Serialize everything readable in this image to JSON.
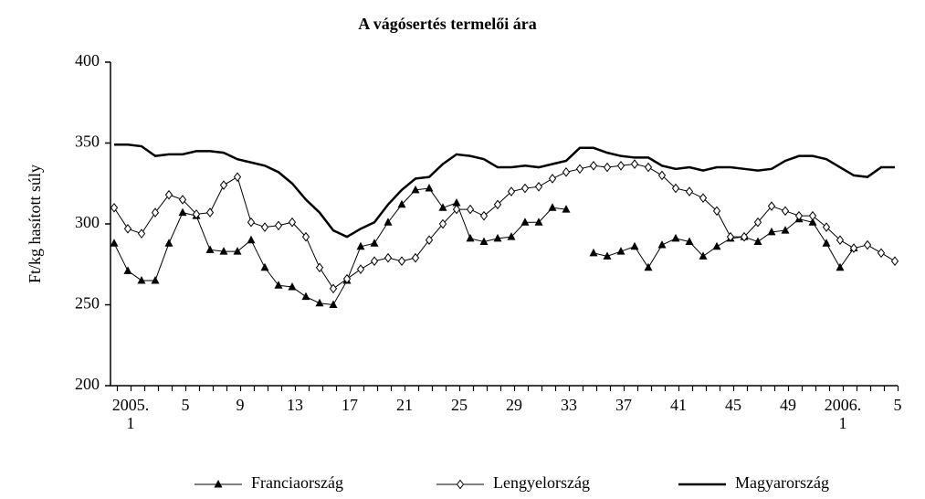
{
  "chart_data": {
    "type": "line",
    "title": "A vágósertés termelői ára",
    "y_label": "Ft/kg hasított súly",
    "categories": [
      "2005.\n1",
      null,
      null,
      null,
      "5",
      null,
      null,
      null,
      "9",
      null,
      null,
      null,
      "13",
      null,
      null,
      null,
      "17",
      null,
      null,
      null,
      "21",
      null,
      null,
      null,
      "25",
      null,
      null,
      null,
      "29",
      null,
      null,
      null,
      "33",
      null,
      null,
      null,
      "37",
      null,
      null,
      null,
      "41",
      null,
      null,
      null,
      "45",
      null,
      null,
      null,
      "49",
      null,
      null,
      null,
      "2006.\n1",
      null,
      null,
      null,
      "5",
      null
    ],
    "ylim": [
      200,
      400
    ],
    "yticks": [
      200,
      250,
      300,
      350,
      400
    ],
    "series": [
      {
        "name": "Franciaország",
        "color": "#000000",
        "marker": "triangle",
        "values": [
          288,
          271,
          265,
          265,
          288,
          307,
          305,
          284,
          283,
          283,
          290,
          273,
          262,
          261,
          255,
          251,
          250,
          265,
          286,
          288,
          301,
          312,
          321,
          322,
          310,
          313,
          291,
          289,
          291,
          292,
          301,
          301,
          310,
          309,
          null,
          282,
          280,
          283,
          286,
          273,
          287,
          291,
          289,
          280,
          286,
          291,
          292,
          289,
          295,
          296,
          303,
          301,
          288,
          273,
          285,
          null,
          null,
          null
        ]
      },
      {
        "name": "Lengyelország",
        "color": "#000000",
        "marker": "diamond",
        "values": [
          310,
          297,
          294,
          307,
          318,
          315,
          306,
          307,
          324,
          329,
          301,
          298,
          299,
          301,
          292,
          273,
          260,
          266,
          272,
          277,
          279,
          277,
          279,
          290,
          300,
          309,
          309,
          305,
          312,
          320,
          322,
          323,
          328,
          332,
          334,
          336,
          335,
          336,
          337,
          335,
          330,
          322,
          320,
          316,
          308,
          292,
          292,
          301,
          311,
          308,
          305,
          305,
          298,
          290,
          285,
          287,
          282,
          277
        ]
      },
      {
        "name": "Magyarország",
        "color": "#000000",
        "marker": "none",
        "values": [
          349,
          349,
          348,
          342,
          343,
          343,
          345,
          345,
          344,
          340,
          338,
          336,
          332,
          325,
          315,
          307,
          296,
          292,
          297,
          301,
          312,
          321,
          328,
          329,
          337,
          343,
          342,
          340,
          335,
          335,
          336,
          335,
          337,
          339,
          347,
          347,
          344,
          342,
          341,
          341,
          336,
          334,
          335,
          333,
          335,
          335,
          334,
          333,
          334,
          339,
          342,
          342,
          340,
          335,
          330,
          329,
          335,
          335
        ]
      }
    ]
  }
}
